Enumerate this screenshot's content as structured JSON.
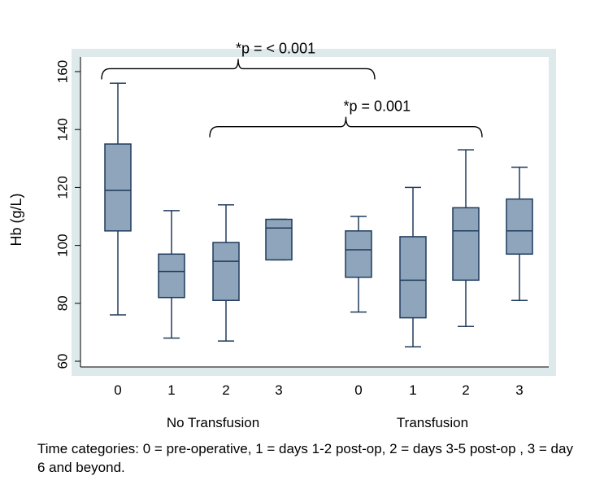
{
  "chart_data": {
    "type": "box",
    "ylabel": "Hb (g/L)",
    "ylim": [
      55,
      165
    ],
    "yticks": [
      60,
      80,
      100,
      120,
      140,
      160
    ],
    "groups": [
      {
        "name": "No Transfusion",
        "boxes": [
          {
            "category": "0",
            "min": 76,
            "q1": 105,
            "median": 119,
            "q3": 135,
            "max": 156
          },
          {
            "category": "1",
            "min": 68,
            "q1": 82,
            "median": 91,
            "q3": 97,
            "max": 112
          },
          {
            "category": "2",
            "min": 67,
            "q1": 81,
            "median": 94.5,
            "q3": 101,
            "max": 114
          },
          {
            "category": "3",
            "min": 95,
            "q1": 95,
            "median": 106,
            "q3": 109,
            "max": 109
          }
        ]
      },
      {
        "name": "Transfusion",
        "boxes": [
          {
            "category": "0",
            "min": 77,
            "q1": 89,
            "median": 98.5,
            "q3": 105,
            "max": 110
          },
          {
            "category": "1",
            "min": 65,
            "q1": 75,
            "median": 88,
            "q3": 103,
            "max": 120
          },
          {
            "category": "2",
            "min": 72,
            "q1": 88,
            "median": 105,
            "q3": 113,
            "max": 133
          },
          {
            "category": "3",
            "min": 81,
            "q1": 97,
            "median": 105,
            "q3": 116,
            "max": 127
          }
        ]
      }
    ],
    "annotations": [
      {
        "text": "*p = < 0.001",
        "from": [
          0,
          0
        ],
        "to": [
          1,
          0
        ],
        "level": 161
      },
      {
        "text": "*p = 0.001",
        "from": [
          0,
          2
        ],
        "to": [
          1,
          2
        ],
        "level": 141
      }
    ],
    "caption": "Time categories:  0 = pre-operative, 1 = days 1-2 post-op, 2 = days 3-5 post-op , 3 = day 6 and beyond.",
    "colors": {
      "box_fill": "#8fa5bb",
      "box_line": "#1f3a5c",
      "plot_border": "#dde9ea",
      "background": "#ffffff"
    }
  }
}
